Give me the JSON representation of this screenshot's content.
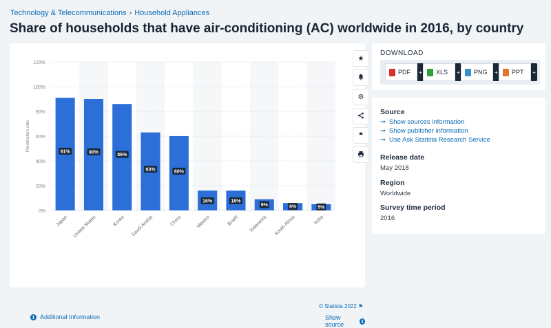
{
  "breadcrumb": {
    "category": "Technology & Telecommunications",
    "separator": "›",
    "subcategory": "Household Appliances"
  },
  "page_title": "Share of households that have air-conditioning (AC) worldwide in 2016, by country",
  "chart_data": {
    "type": "bar",
    "title": "Share of households that have air-conditioning (AC) worldwide in 2016, by country",
    "categories": [
      "Japan",
      "United States",
      "Korea",
      "Saudi Arabia",
      "China",
      "Mexico",
      "Brazil",
      "Indonesia",
      "South Africa",
      "India"
    ],
    "values": [
      91,
      90,
      86,
      63,
      60,
      16,
      16,
      9,
      6,
      5
    ],
    "data_labels": [
      "91%",
      "90%",
      "86%",
      "63%",
      "60%",
      "16%",
      "16%",
      "9%",
      "6%",
      "5%"
    ],
    "ylabel": "Penetration rate",
    "xlabel": "",
    "ylim": [
      0,
      120
    ],
    "yticks": [
      0,
      20,
      40,
      60,
      80,
      100,
      120
    ],
    "ytick_labels": [
      "0%",
      "20%",
      "40%",
      "60%",
      "80%",
      "100%",
      "120%"
    ],
    "bar_color": "#2d6fd8",
    "grid": true
  },
  "chart_footer": {
    "credit": "© Statista 2022",
    "additional_info": "Additional Information",
    "show_source": "Show source"
  },
  "side_toolbar": [
    "star-icon",
    "bell-icon",
    "gear-icon",
    "share-icon",
    "quote-icon",
    "print-icon"
  ],
  "download": {
    "title": "DOWNLOAD",
    "buttons": [
      {
        "label": "PDF",
        "icon": "pdf-icon",
        "color": "#d9302b"
      },
      {
        "label": "XLS",
        "icon": "xls-icon",
        "color": "#2e9e3e"
      },
      {
        "label": "PNG",
        "icon": "png-icon",
        "color": "#3c8fc8"
      },
      {
        "label": "PPT",
        "icon": "ppt-icon",
        "color": "#e0752d"
      }
    ],
    "plus": "+"
  },
  "meta": {
    "source_label": "Source",
    "source_links": [
      "Show sources information",
      "Show publisher information",
      "Use Ask Statista Research Service"
    ],
    "release_label": "Release date",
    "release_value": "May 2018",
    "region_label": "Region",
    "region_value": "Worldwide",
    "period_label": "Survey time period",
    "period_value": "2016"
  },
  "colors": {
    "accent": "#0b6bb5",
    "bar": "#2d6fd8",
    "dark": "#1b2838"
  }
}
